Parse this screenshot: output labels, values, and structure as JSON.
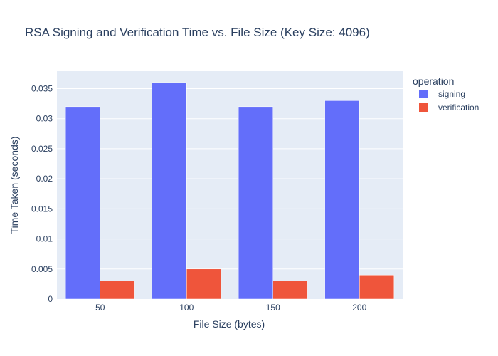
{
  "chart_data": {
    "type": "bar",
    "title": "RSA Signing and Verification Time vs. File Size (Key Size: 4096)",
    "xlabel": "File Size (bytes)",
    "ylabel": "Time Taken (seconds)",
    "categories": [
      "50",
      "100",
      "150",
      "200"
    ],
    "yticks": [
      "0",
      "0.005",
      "0.01",
      "0.015",
      "0.02",
      "0.025",
      "0.03",
      "0.035"
    ],
    "ylim": [
      0,
      0.0379
    ],
    "legend_title": "operation",
    "legend_position": "right",
    "grid": true,
    "background_color": "#e5ecf6",
    "series": [
      {
        "name": "signing",
        "color": "#636efa",
        "values": [
          0.032,
          0.036,
          0.032,
          0.033
        ]
      },
      {
        "name": "verification",
        "color": "#ef553b",
        "values": [
          0.003,
          0.005,
          0.003,
          0.004
        ]
      }
    ]
  }
}
